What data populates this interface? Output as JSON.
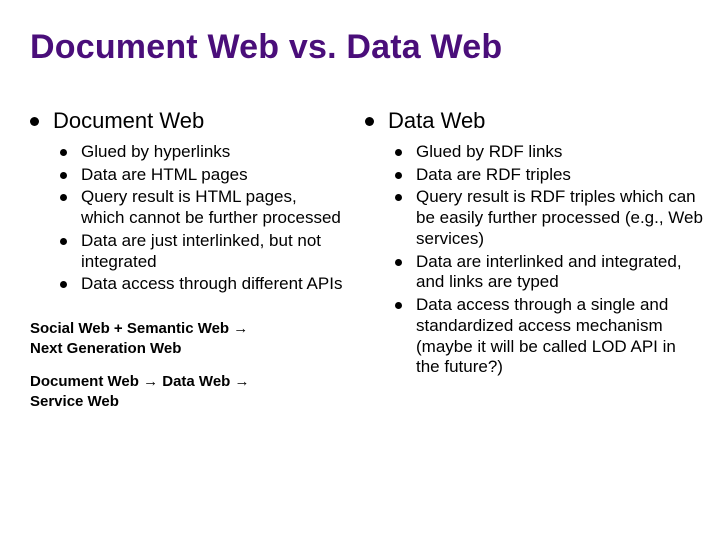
{
  "title": "Document Web vs. Data Web",
  "colors": {
    "title_color": "#4a0e7a",
    "text_color": "#000000",
    "bullet_color": "#000000",
    "background": "#ffffff"
  },
  "typography": {
    "title_fontsize": 34,
    "heading_fontsize": 22,
    "body_fontsize": 17,
    "footer_fontsize": 15,
    "font_family": "Arial"
  },
  "left": {
    "heading": "Document Web",
    "items": [
      "Glued by hyperlinks",
      "Data are HTML pages",
      "Query result is HTML pages, which cannot be further processed",
      "Data are just interlinked, but not integrated",
      "Data access through different APIs"
    ]
  },
  "right": {
    "heading": "Data Web",
    "items": [
      "Glued by RDF links",
      "Data are RDF triples",
      "Query result is RDF triples which can be easily further processed (e.g., Web services)",
      "Data are interlinked and integrated, and links are typed",
      "Data access through a single and standardized access mechanism (maybe it will be called LOD API in the future?)"
    ]
  },
  "footer": {
    "line1a": "Social Web + Semantic Web",
    "line1b": "Next Generation Web",
    "line2a": "Document Web",
    "line2b": "Data Web",
    "line2c": "Service Web"
  }
}
